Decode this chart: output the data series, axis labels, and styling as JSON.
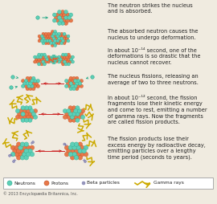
{
  "bg_color": "#f0ebe0",
  "credit": "© 2013 Encyclopædia Britannica, Inc.",
  "neutron_color": "#5ecfb8",
  "proton_color": "#e8784a",
  "neutron_outline": "#2aaa88",
  "proton_outline": "#c05020",
  "arrow_color": "#cc2222",
  "gamma_color": "#ccaa00",
  "beta_color": "#9999bb",
  "beta_outline": "#6666aa",
  "text_color": "#222222",
  "text_size": 4.8,
  "steps": [
    "The neutron strikes the nucleus\nand is absorbed.",
    "The absorbed neutron causes the\nnucleus to undergo deformation.",
    "In about 10⁻¹⁴ second, one of the\ndeformations is so drastic that the\nnucleus cannot recover.",
    "The nucleus fissions, releasing an\naverage of two to three neutrons.",
    "In about 10⁻¹² second, the fission\nfragments lose their kinetic energy\nand come to rest, emitting a number\nof gamma rays. Now the fragments\nare called fission products.",
    "The fission products lose their\nexcess energy by radioactive decay,\nemitting particles over a lengthy\ntime period (seconds to years)."
  ]
}
